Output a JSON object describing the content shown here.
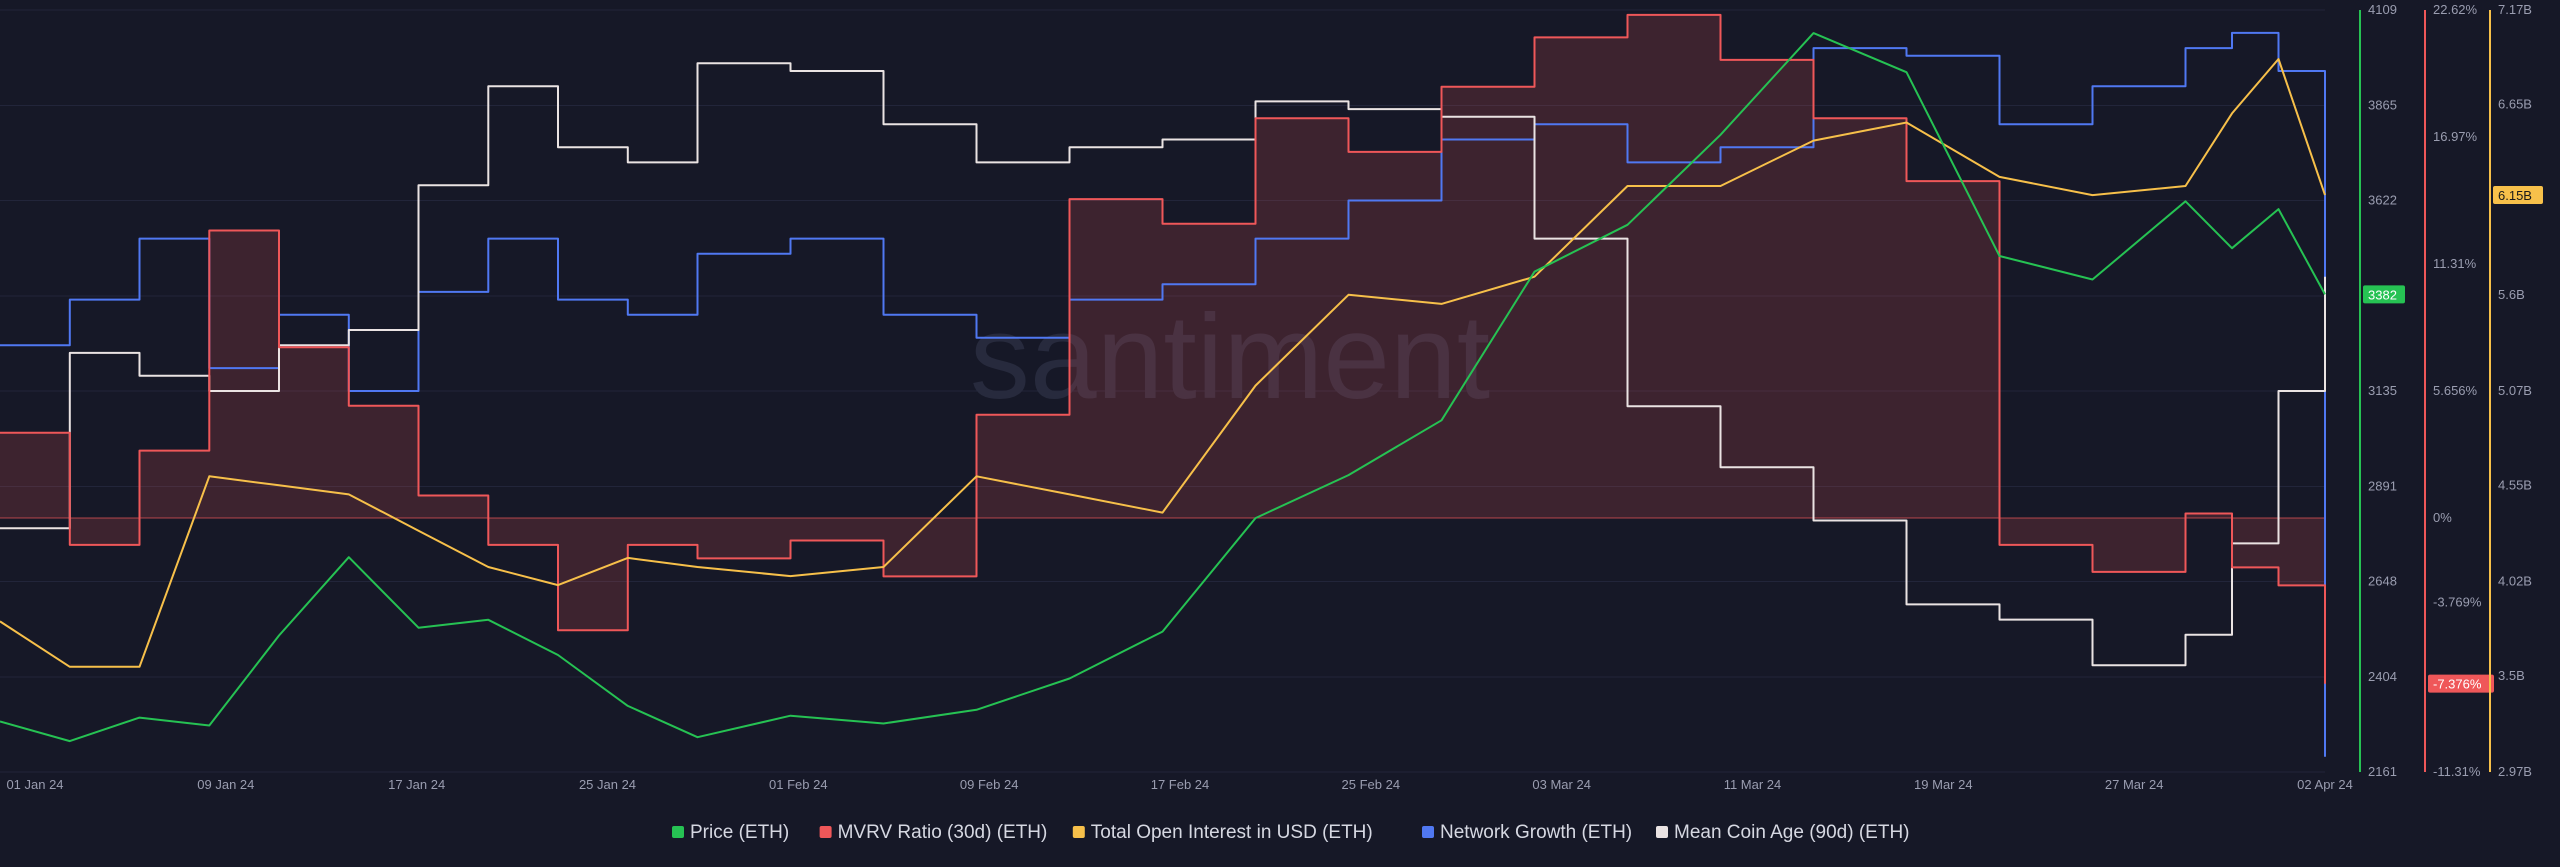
{
  "watermark": "santiment",
  "chart_data": {
    "type": "line",
    "x_ticks": [
      "01 Jan 24",
      "09 Jan 24",
      "17 Jan 24",
      "25 Jan 24",
      "01 Feb 24",
      "09 Feb 24",
      "17 Feb 24",
      "25 Feb 24",
      "03 Mar 24",
      "11 Mar 24",
      "19 Mar 24",
      "27 Mar 24",
      "02 Apr 24"
    ],
    "axes": {
      "price": {
        "ticks": [
          "4109",
          "3865",
          "3622",
          "3378",
          "3135",
          "2891",
          "2648",
          "2404",
          "2161"
        ],
        "min": 2161,
        "max": 4109,
        "color": "#26c253"
      },
      "mvrv": {
        "ticks": [
          "22.62%",
          "16.97%",
          "11.31%",
          "5.656%",
          "0%",
          "-3.769%",
          "-7.376%",
          "-11.31%"
        ],
        "values": [
          22.62,
          16.97,
          11.31,
          5.656,
          0,
          -3.769,
          -7.376,
          -11.31
        ],
        "min": -11.31,
        "max": 22.62,
        "color": "#ef5759"
      },
      "oi": {
        "ticks": [
          "7.17B",
          "6.65B",
          "6.15B",
          "5.6B",
          "5.07B",
          "4.55B",
          "4.02B",
          "3.5B",
          "2.97B"
        ],
        "values": [
          7.17,
          6.65,
          6.15,
          5.6,
          5.07,
          4.55,
          4.02,
          3.5,
          2.97
        ],
        "min": 2.97,
        "max": 7.17,
        "color": "#f7c04a"
      }
    },
    "current_labels": {
      "price": "3382",
      "mvrv": "-7.376%",
      "oi": "6.15B"
    },
    "series": [
      {
        "key": "price",
        "name": "Price (ETH)",
        "color": "#26c253",
        "x": [
          0,
          3,
          6,
          9,
          12,
          15,
          18,
          21,
          24,
          27,
          30,
          34,
          38,
          42,
          46,
          50,
          54,
          58,
          62,
          66,
          70,
          74,
          78,
          82,
          86,
          90,
          94,
          96,
          98,
          100
        ],
        "y": [
          2290,
          2240,
          2300,
          2280,
          2510,
          2710,
          2530,
          2550,
          2460,
          2330,
          2250,
          2305,
          2285,
          2320,
          2400,
          2520,
          2810,
          2920,
          3060,
          3440,
          3560,
          3790,
          4050,
          3950,
          3480,
          3420,
          3620,
          3500,
          3600,
          3382
        ]
      },
      {
        "key": "mvrv",
        "name": "MVRV Ratio (30d) (ETH)",
        "color": "#ef5759",
        "x": [
          0,
          3,
          6,
          9,
          12,
          15,
          18,
          21,
          24,
          27,
          30,
          34,
          38,
          42,
          46,
          50,
          54,
          58,
          62,
          66,
          70,
          74,
          78,
          82,
          86,
          90,
          94,
          96,
          98,
          100
        ],
        "y": [
          3.8,
          -1.2,
          3.0,
          12.8,
          7.6,
          5.0,
          1.0,
          -1.2,
          -5.0,
          -1.2,
          -1.8,
          -1.0,
          -2.6,
          4.6,
          14.2,
          13.1,
          17.8,
          16.3,
          19.2,
          21.4,
          22.4,
          20.4,
          17.8,
          15.0,
          -1.2,
          -2.4,
          0.2,
          -2.2,
          -3.0,
          -7.376
        ]
      },
      {
        "key": "oi",
        "name": "Total Open Interest in USD (ETH)",
        "color": "#f7c04a",
        "x": [
          0,
          3,
          6,
          9,
          12,
          15,
          18,
          21,
          24,
          27,
          30,
          34,
          38,
          42,
          46,
          50,
          54,
          58,
          62,
          66,
          70,
          74,
          78,
          82,
          86,
          90,
          94,
          96,
          98,
          100
        ],
        "y": [
          3.8,
          3.55,
          3.55,
          4.6,
          4.55,
          4.5,
          4.3,
          4.1,
          4.0,
          4.15,
          4.1,
          4.05,
          4.1,
          4.6,
          4.5,
          4.4,
          5.1,
          5.6,
          5.55,
          5.7,
          6.2,
          6.2,
          6.45,
          6.55,
          6.25,
          6.15,
          6.2,
          6.6,
          6.9,
          6.15
        ]
      },
      {
        "key": "ng",
        "name": "Network Growth (ETH)",
        "color": "#5078f2",
        "x": [
          0,
          3,
          6,
          9,
          12,
          15,
          18,
          21,
          24,
          27,
          30,
          34,
          38,
          42,
          46,
          50,
          54,
          58,
          62,
          66,
          70,
          74,
          78,
          82,
          86,
          90,
          94,
          96,
          98,
          100
        ],
        "y": [
          0.56,
          0.62,
          0.7,
          0.53,
          0.6,
          0.5,
          0.63,
          0.7,
          0.62,
          0.6,
          0.68,
          0.7,
          0.6,
          0.57,
          0.62,
          0.64,
          0.7,
          0.75,
          0.83,
          0.85,
          0.8,
          0.82,
          0.95,
          0.94,
          0.85,
          0.9,
          0.95,
          0.97,
          0.92,
          0.02
        ]
      },
      {
        "key": "mca",
        "name": "Mean Coin Age (90d) (ETH)",
        "color": "#eae3e3",
        "x": [
          0,
          3,
          6,
          9,
          12,
          15,
          18,
          21,
          24,
          27,
          30,
          34,
          38,
          42,
          46,
          50,
          54,
          58,
          62,
          66,
          70,
          74,
          78,
          82,
          86,
          90,
          94,
          96,
          98,
          100
        ],
        "y": [
          0.32,
          0.55,
          0.52,
          0.5,
          0.56,
          0.58,
          0.77,
          0.9,
          0.82,
          0.8,
          0.93,
          0.92,
          0.85,
          0.8,
          0.82,
          0.83,
          0.88,
          0.87,
          0.86,
          0.7,
          0.48,
          0.4,
          0.33,
          0.22,
          0.2,
          0.14,
          0.18,
          0.3,
          0.5,
          0.65
        ]
      }
    ]
  }
}
